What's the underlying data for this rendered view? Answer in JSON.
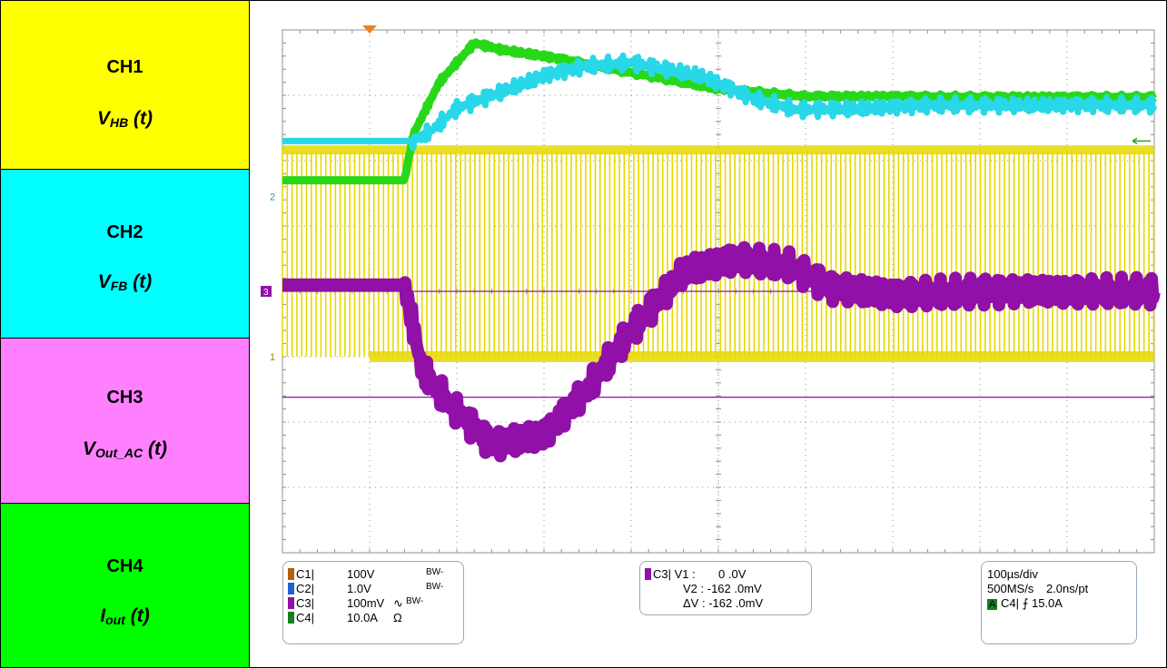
{
  "channels": [
    {
      "name": "CH1",
      "signal": "V",
      "sub": "HB",
      "suffix": " (t)",
      "color": "#ffff00"
    },
    {
      "name": "CH2",
      "signal": "V",
      "sub": "FB",
      "suffix": " (t)",
      "color": "#00ffff"
    },
    {
      "name": "CH3",
      "signal": "V",
      "sub": "Out_AC",
      "suffix": " (t)",
      "color": "#ff80ff"
    },
    {
      "name": "CH4",
      "signal": "I",
      "sub": "out",
      "suffix": " (t)",
      "color": "#00ff00"
    }
  ],
  "scope": {
    "grid_divisions": {
      "x": 10,
      "y": 8
    },
    "time_per_div_us": 100,
    "trace_colors": {
      "ch1": "#e8d800",
      "ch2": "#28d8e8",
      "ch3": "#9010a8",
      "ch4": "#28d818",
      "grid": "#909090"
    },
    "markers": {
      "ch1": "1",
      "ch2": "2",
      "ch3": "3"
    },
    "settings": [
      {
        "ch": "C1",
        "scale": "100V",
        "coupling": "",
        "bw": "BW-",
        "swatch": "#b06010"
      },
      {
        "ch": "C2",
        "scale": "1.0V",
        "coupling": "",
        "bw": "BW-",
        "swatch": "#2060d0"
      },
      {
        "ch": "C3",
        "scale": "100mV",
        "coupling": "∿",
        "bw": "BW-",
        "swatch": "#9010a8"
      },
      {
        "ch": "C4",
        "scale": "10.0A",
        "coupling": "Ω",
        "bw": "",
        "swatch": "#108020"
      }
    ],
    "cursor": {
      "ch": "C3",
      "v1": "V1 :       0 .0V",
      "v2": "V2 : -162 .0mV",
      "dv": "ΔV : -162 .0mV",
      "swatch": "#9010a8"
    },
    "timebase": {
      "div": "100µs/div",
      "rate": "500MS/s",
      "res": "2.0ns/pt",
      "trig_mode": "A",
      "trig": "C4| ⨍ 15.0A",
      "trig_color": "#108020"
    }
  },
  "chart_data": {
    "type": "line",
    "title": "",
    "xlabel": "",
    "ylabel": "",
    "x_unit": "div",
    "xlim": [
      0,
      10
    ],
    "ylim": [
      -4,
      4
    ],
    "series": [
      {
        "key": "ch4",
        "name": "CH4",
        "x": [
          0,
          1.4,
          1.5,
          1.8,
          2.2,
          2.5,
          3,
          4,
          5,
          6,
          7,
          8,
          9,
          10
        ],
        "y": [
          1.7,
          1.7,
          2.4,
          3.2,
          3.8,
          3.7,
          3.6,
          3.35,
          3.1,
          2.98,
          2.98,
          2.97,
          2.97,
          2.97
        ]
      },
      {
        "key": "ch2",
        "name": "CH2",
        "x": [
          0,
          1.5,
          1.7,
          2,
          2.5,
          3,
          3.5,
          4,
          4.8,
          5.4,
          5.9,
          6.6,
          7.5,
          8.5,
          10
        ],
        "y": [
          2.3,
          2.3,
          2.45,
          2.8,
          3.05,
          3.3,
          3.45,
          3.5,
          3.3,
          2.95,
          2.78,
          2.8,
          2.85,
          2.85,
          2.85
        ]
      },
      {
        "key": "ch3",
        "name": "CH3",
        "x": [
          0,
          1.4,
          1.6,
          1.9,
          2.4,
          3,
          3.5,
          4,
          4.6,
          5.2,
          5.8,
          6.3,
          7,
          8,
          9,
          10
        ],
        "y": [
          0.1,
          0.1,
          -1.2,
          -1.7,
          -2.35,
          -2.2,
          -1.5,
          -0.6,
          0.3,
          0.5,
          0.4,
          0.05,
          -0.05,
          0.0,
          0.0,
          0.0
        ]
      },
      {
        "key": "ch1",
        "name": "CH1",
        "switching": true,
        "high": 2.15,
        "low": -1.0,
        "start_div": 0.0
      }
    ]
  }
}
